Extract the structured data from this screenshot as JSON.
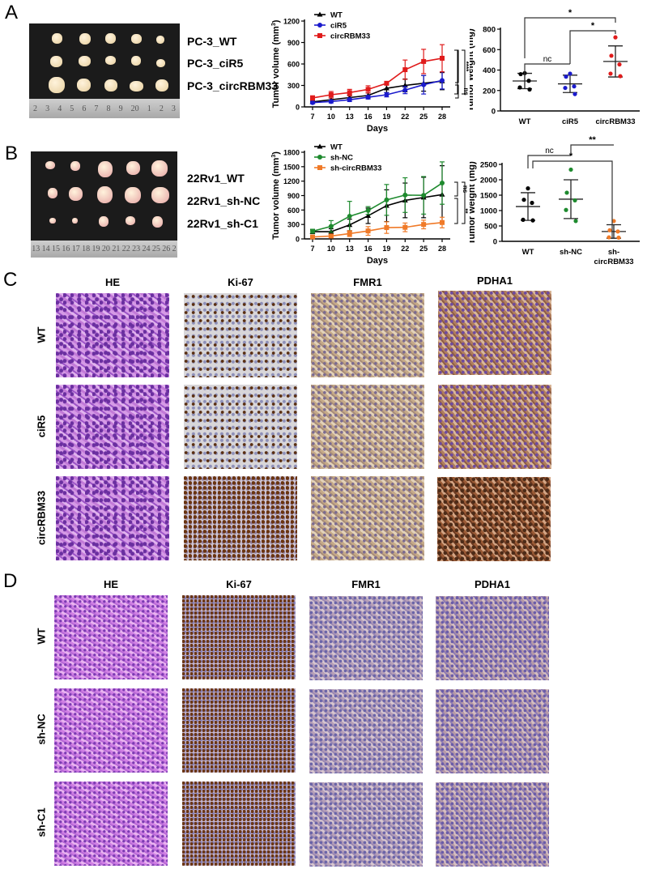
{
  "panels": {
    "A": {
      "letter": "A",
      "photo_labels": [
        "PC-3_WT",
        "PC-3_ciR5",
        "PC-3_circRBM33"
      ],
      "ruler_ticks": [
        "2",
        "3",
        "4",
        "5",
        "6",
        "7",
        "8",
        "9",
        "20",
        "1",
        "2",
        "3"
      ]
    },
    "B": {
      "letter": "B",
      "photo_labels": [
        "22Rv1_WT",
        "22Rv1_sh-NC",
        "22Rv1_sh-C1"
      ],
      "ruler_ticks": [
        "13",
        "14",
        "15",
        "16",
        "17",
        "18",
        "19",
        "20",
        "21",
        "22",
        "23",
        "24",
        "25",
        "26",
        "2"
      ]
    },
    "C": {
      "letter": "C",
      "columns": [
        "HE",
        "Ki-67",
        "FMR1",
        "PDHA1"
      ],
      "rows": [
        "WT",
        "ciR5",
        "circRBM33"
      ]
    },
    "D": {
      "letter": "D",
      "columns": [
        "HE",
        "Ki-67",
        "FMR1",
        "PDHA1"
      ],
      "rows": [
        "WT",
        "sh-NC",
        "sh-C1"
      ]
    }
  },
  "chart_data": [
    {
      "id": "A-volume",
      "type": "line",
      "title": "",
      "xlabel": "Days",
      "ylabel": "Tumor volume (mm3)",
      "x": [
        7,
        10,
        13,
        16,
        19,
        22,
        25,
        28
      ],
      "yticks": [
        0,
        300,
        600,
        900,
        1200
      ],
      "ylim": [
        0,
        1200
      ],
      "series": [
        {
          "name": "WT",
          "color": "#000000",
          "marker": "triangle",
          "values": [
            70,
            100,
            130,
            160,
            260,
            300,
            330,
            360
          ],
          "err": [
            20,
            25,
            30,
            35,
            60,
            90,
            110,
            120
          ]
        },
        {
          "name": "ciR5",
          "color": "#1a1acc",
          "marker": "circle",
          "values": [
            60,
            75,
            100,
            135,
            170,
            235,
            310,
            370
          ],
          "err": [
            15,
            20,
            25,
            25,
            30,
            50,
            130,
            120
          ]
        },
        {
          "name": "circRBM33",
          "color": "#e01b1b",
          "marker": "square",
          "values": [
            125,
            170,
            200,
            245,
            330,
            520,
            635,
            680
          ],
          "err": [
            30,
            45,
            45,
            50,
            15,
            135,
            170,
            190
          ]
        }
      ],
      "annotations": [
        {
          "text": "****",
          "between": [
            "circRBM33",
            "WT"
          ]
        },
        {
          "text": "ns",
          "between": [
            "WT",
            "ciR5"
          ]
        },
        {
          "text": "****",
          "between": [
            "circRBM33",
            "ciR5"
          ]
        }
      ],
      "legend_position": "top-left"
    },
    {
      "id": "A-weight",
      "type": "scatter",
      "xlabel": "",
      "ylabel": "Tumor weight (mg)",
      "categories": [
        "WT",
        "ciR5",
        "circRBM33"
      ],
      "yticks": [
        0,
        200,
        400,
        600,
        800
      ],
      "ylim": [
        0,
        800
      ],
      "series": [
        {
          "name": "WT",
          "color": "#000000",
          "points": [
            370,
            360,
            295,
            230,
            210
          ],
          "mean": 293,
          "sd": 75
        },
        {
          "name": "ciR5",
          "color": "#1a1acc",
          "points": [
            365,
            335,
            240,
            225,
            165
          ],
          "mean": 265,
          "sd": 85
        },
        {
          "name": "circRBM33",
          "color": "#e01b1b",
          "points": [
            720,
            540,
            455,
            365,
            340
          ],
          "mean": 484,
          "sd": 152
        }
      ],
      "significance": [
        {
          "pair": [
            "WT",
            "ciR5"
          ],
          "label": "nc"
        },
        {
          "pair": [
            "ciR5",
            "circRBM33"
          ],
          "label": "*"
        },
        {
          "pair": [
            "WT",
            "circRBM33"
          ],
          "label": "*"
        }
      ]
    },
    {
      "id": "B-volume",
      "type": "line",
      "xlabel": "Days",
      "ylabel": "Tumor volume (mm3)",
      "x": [
        7,
        10,
        13,
        16,
        19,
        22,
        25,
        28
      ],
      "yticks": [
        0,
        300,
        600,
        900,
        1200,
        1500,
        1800
      ],
      "ylim": [
        0,
        1800
      ],
      "series": [
        {
          "name": "WT",
          "color": "#000000",
          "marker": "triangle",
          "values": [
            150,
            150,
            290,
            480,
            690,
            800,
            860,
            920
          ],
          "err": [
            40,
            60,
            120,
            160,
            330,
            360,
            420,
            600
          ]
        },
        {
          "name": "sh-NC",
          "color": "#1e8a2e",
          "marker": "circle",
          "values": [
            160,
            260,
            470,
            590,
            810,
            910,
            905,
            1160
          ],
          "err": [
            40,
            120,
            310,
            80,
            320,
            360,
            390,
            440
          ]
        },
        {
          "name": "sh-circRBM33",
          "color": "#f07a28",
          "marker": "square",
          "values": [
            40,
            60,
            110,
            165,
            235,
            240,
            300,
            340
          ],
          "err": [
            20,
            30,
            60,
            90,
            120,
            90,
            90,
            110
          ]
        }
      ],
      "annotations": [
        {
          "text": "ns",
          "between": [
            "sh-NC",
            "WT"
          ]
        },
        {
          "text": "**",
          "between": [
            "WT",
            "sh-circRBM33"
          ]
        },
        {
          "text": "****",
          "between": [
            "sh-NC",
            "sh-circRBM33"
          ]
        }
      ],
      "legend_position": "top-left"
    },
    {
      "id": "B-weight",
      "type": "scatter",
      "xlabel": "",
      "ylabel": "Tumor weight (mg)",
      "categories": [
        "WT",
        "sh-NC",
        "sh-circRBM33"
      ],
      "yticks": [
        0,
        500,
        1000,
        1500,
        2000,
        2500
      ],
      "ylim": [
        0,
        2500
      ],
      "series": [
        {
          "name": "WT",
          "color": "#000000",
          "points": [
            1720,
            1350,
            1250,
            700,
            680
          ],
          "mean": 1130,
          "sd": 450
        },
        {
          "name": "sh-NC",
          "color": "#1e8a2e",
          "points": [
            2330,
            1580,
            1330,
            1020,
            660
          ],
          "mean": 1370,
          "sd": 630
        },
        {
          "name": "sh-circRBM33",
          "color": "#f07a28",
          "points": [
            660,
            360,
            320,
            130,
            120
          ],
          "mean": 320,
          "sd": 220
        }
      ],
      "significance": [
        {
          "pair": [
            "WT",
            "sh-NC"
          ],
          "label": "nc"
        },
        {
          "pair": [
            "sh-NC",
            "sh-circRBM33"
          ],
          "label": "**"
        },
        {
          "pair": [
            "WT",
            "sh-circRBM33"
          ],
          "label": "*"
        }
      ]
    }
  ]
}
